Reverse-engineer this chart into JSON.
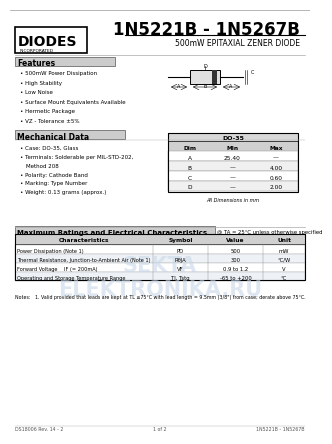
{
  "title": "1N5221B - 1N5267B",
  "subtitle": "500mW EPITAXIAL ZENER DIODE",
  "logo_text": "DIODES",
  "logo_sub": "INCORPORATED",
  "features_title": "Features",
  "features": [
    "500mW Power Dissipation",
    "High Stability",
    "Low Noise",
    "Surface Mount Equivalents Available",
    "Hermetic Package",
    "VZ - Tolerance ±5%"
  ],
  "mech_title": "Mechanical Data",
  "mech_items": [
    "Case: DO-35, Glass",
    "Terminals: Solderable per MIL-STD-202,",
    "  Method 208",
    "Polarity: Cathode Band",
    "Marking: Type Number",
    "Weight: 0.13 grams (approx.)"
  ],
  "dim_table_title": "DO-35",
  "dim_headers": [
    "Dim",
    "Min",
    "Max"
  ],
  "dim_rows": [
    [
      "A",
      "25.40",
      "—"
    ],
    [
      "B",
      "—",
      "4.00"
    ],
    [
      "C",
      "—",
      "0.60"
    ],
    [
      "D",
      "—",
      "2.00"
    ]
  ],
  "dim_note": "All Dimensions in mm",
  "elec_title": "Maximum Ratings and Electrical Characteristics",
  "elec_note": "@ TA = 25°C unless otherwise specified",
  "elec_headers": [
    "Characteristics",
    "Symbol",
    "Value",
    "Unit"
  ],
  "elec_rows": [
    [
      "Power Dissipation (Note 1)",
      "PD",
      "500",
      "mW"
    ],
    [
      "Thermal Resistance, Junction-to-Ambient Air (Note 1)",
      "RθJA",
      "300",
      "°C/W"
    ],
    [
      "Forward Voltage    IF (= 200mA)",
      "VF",
      "0.9 to 1.2",
      "V"
    ],
    [
      "Operating and Storage Temperature Range",
      "TJ, Tstg",
      "-65 to +200",
      "°C"
    ]
  ],
  "notes_text": "Notes:   1. Valid provided that leads are kept at TL ≤75°C with lead length = 9.5mm (3/8\") from case; derate above 75°C.",
  "footer_left": "DS18006 Rev. 14 - 2",
  "footer_center": "1 of 2",
  "footer_right": "1N5221B - 1N5267B",
  "bg_color": "#ffffff",
  "text_color": "#000000",
  "section_title_bg": "#cccccc",
  "watermark_color": "#c8d8e8"
}
